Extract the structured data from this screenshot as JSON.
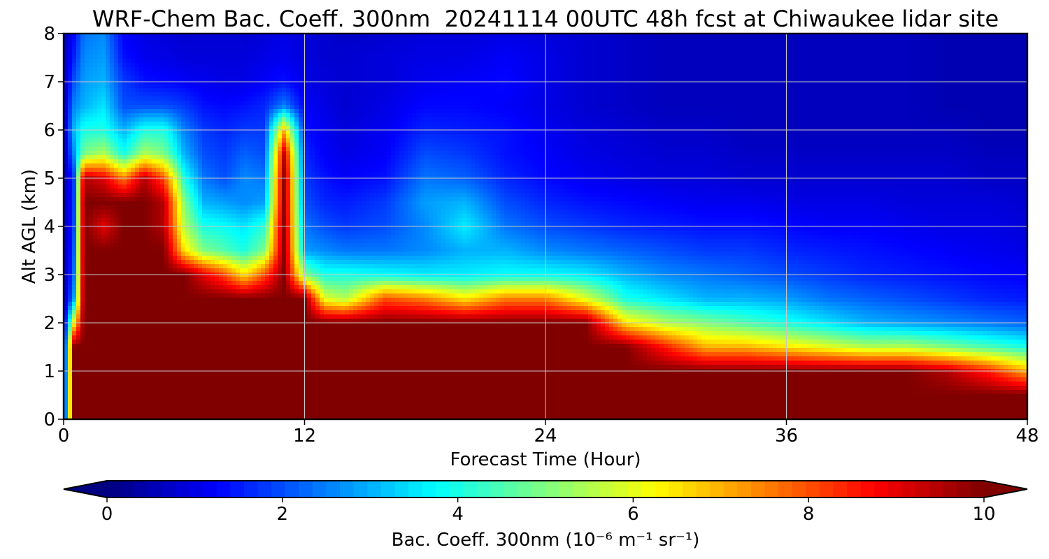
{
  "chart_data": {
    "type": "heatmap",
    "title": "WRF-Chem Bac. Coeff. 300nm  20241114 00UTC 48h fcst at Chiwaukee lidar site",
    "xlabel": "Forecast Time (Hour)",
    "ylabel": "Alt AGL (km)",
    "xlim": [
      0,
      48
    ],
    "ylim": [
      0,
      8
    ],
    "xticks": [
      0,
      12,
      24,
      36,
      48
    ],
    "yticks": [
      0,
      1,
      2,
      3,
      4,
      5,
      6,
      7,
      8
    ],
    "grid": true,
    "colorbar": {
      "label": "Bac. Coeff. 300nm  (10⁻⁶ m⁻¹ sr⁻¹)",
      "range": [
        0,
        10
      ],
      "ticks": [
        0,
        2,
        4,
        6,
        8,
        10
      ],
      "extend": "both",
      "colormap": "jet"
    },
    "x": [
      0,
      0.5,
      1,
      2,
      3,
      4,
      5,
      6,
      7,
      8,
      9,
      10,
      11,
      12,
      13,
      14,
      16,
      18,
      20,
      22,
      24,
      26,
      28,
      30,
      32,
      34,
      36,
      38,
      40,
      42,
      44,
      46,
      48
    ],
    "y": [
      0,
      0.5,
      1,
      1.5,
      2,
      2.5,
      3,
      3.5,
      4,
      4.5,
      5,
      5.5,
      6,
      6.5,
      7,
      7.5,
      8
    ],
    "z": [
      [
        0.6,
        10,
        10,
        10,
        10,
        10,
        10,
        10,
        10,
        10,
        10,
        10,
        10,
        10,
        10,
        10,
        10,
        10,
        10,
        10,
        10,
        10,
        10,
        10,
        10,
        10,
        10,
        10,
        10,
        10,
        10,
        10,
        10
      ],
      [
        0.6,
        10,
        10,
        10,
        10,
        10,
        10,
        10,
        10,
        10,
        10,
        10,
        10,
        10,
        10,
        10,
        10,
        10,
        10,
        10,
        10,
        10,
        10,
        10,
        10,
        10,
        10,
        10,
        10,
        10,
        10,
        10,
        10
      ],
      [
        0.6,
        10,
        10,
        10,
        10,
        10,
        10,
        10,
        10,
        10,
        10,
        10,
        10,
        10,
        10,
        10,
        10,
        10,
        10,
        10,
        10,
        10,
        10,
        10,
        10,
        10,
        10,
        10,
        10,
        10,
        9.5,
        8.5,
        7.0
      ],
      [
        0.6,
        10,
        10,
        10,
        10,
        10,
        10,
        10,
        10,
        10,
        10,
        10,
        10,
        10,
        10,
        10,
        10,
        10,
        10,
        10,
        10,
        10,
        10,
        8.5,
        7.0,
        7.0,
        6.5,
        6.0,
        5.5,
        5.5,
        5.0,
        4.5,
        4.0
      ],
      [
        0.6,
        6.0,
        10,
        10,
        10,
        10,
        10,
        10,
        10,
        10,
        10,
        10,
        10,
        10,
        10,
        10,
        10,
        10,
        10,
        10,
        10,
        10,
        6.5,
        5.5,
        5.0,
        4.5,
        4.0,
        3.5,
        3.0,
        2.8,
        2.6,
        2.4,
        2.2
      ],
      [
        0.5,
        2.5,
        10,
        10,
        10,
        10,
        10,
        10,
        10,
        10,
        10,
        10,
        10,
        10,
        6.0,
        5.5,
        8.0,
        7.5,
        6.5,
        7.5,
        7.5,
        6.0,
        4.0,
        3.5,
        3.0,
        3.0,
        2.8,
        2.4,
        2.2,
        2.0,
        1.8,
        1.6,
        1.5
      ],
      [
        0.5,
        2.0,
        10,
        10,
        10,
        10,
        10,
        10,
        9.0,
        8.0,
        6.5,
        8.0,
        10,
        5.0,
        4.0,
        4.0,
        3.8,
        3.6,
        3.6,
        3.8,
        3.8,
        3.6,
        3.0,
        2.6,
        2.4,
        2.2,
        2.0,
        1.8,
        1.6,
        1.5,
        1.4,
        1.3,
        1.2
      ],
      [
        0.5,
        1.8,
        10,
        10,
        10,
        10,
        10,
        6.5,
        5.0,
        4.5,
        4.0,
        5.0,
        10,
        2.8,
        2.6,
        2.4,
        2.4,
        2.6,
        3.0,
        3.0,
        2.6,
        2.4,
        2.2,
        2.0,
        1.8,
        1.8,
        1.6,
        1.5,
        1.4,
        1.3,
        1.2,
        1.1,
        1.0
      ],
      [
        0.5,
        1.6,
        10,
        9.0,
        10,
        10,
        9.5,
        5.5,
        4.0,
        3.8,
        3.5,
        4.2,
        10,
        2.4,
        2.0,
        1.8,
        2.0,
        2.6,
        3.6,
        2.4,
        2.0,
        1.8,
        1.6,
        1.5,
        1.4,
        1.4,
        1.3,
        1.2,
        1.2,
        1.1,
        1.0,
        1.0,
        0.9
      ],
      [
        0.5,
        1.5,
        10,
        10,
        10,
        10,
        9.5,
        5.0,
        3.0,
        2.8,
        2.6,
        2.8,
        10,
        2.0,
        1.6,
        1.5,
        1.8,
        2.8,
        3.0,
        2.0,
        1.6,
        1.4,
        1.3,
        1.2,
        1.1,
        1.1,
        1.0,
        1.0,
        1.0,
        0.9,
        0.9,
        0.9,
        0.8
      ],
      [
        0.5,
        1.5,
        9.5,
        9.0,
        7.5,
        9.5,
        8.0,
        4.0,
        2.4,
        2.0,
        2.6,
        2.4,
        10,
        1.8,
        1.4,
        1.2,
        1.4,
        2.4,
        2.2,
        1.6,
        1.3,
        1.1,
        1.0,
        0.9,
        0.9,
        0.8,
        0.8,
        0.8,
        0.8,
        0.8,
        0.8,
        0.7,
        0.7
      ],
      [
        0.5,
        2.5,
        5.0,
        5.5,
        4.0,
        5.5,
        5.0,
        3.0,
        2.0,
        1.8,
        2.2,
        2.0,
        9.5,
        1.6,
        1.2,
        1.0,
        1.2,
        2.0,
        1.8,
        1.4,
        1.2,
        1.0,
        0.9,
        0.8,
        0.8,
        0.7,
        0.7,
        0.7,
        0.7,
        0.7,
        0.7,
        0.6,
        0.6
      ],
      [
        0.5,
        3.0,
        4.0,
        4.0,
        3.0,
        4.0,
        4.0,
        2.5,
        1.8,
        1.6,
        1.8,
        1.8,
        7.0,
        1.4,
        1.1,
        0.9,
        1.1,
        1.6,
        1.5,
        1.4,
        1.1,
        0.9,
        0.8,
        0.7,
        0.7,
        0.6,
        0.6,
        0.6,
        0.6,
        0.6,
        0.6,
        0.5,
        0.5
      ],
      [
        0.5,
        2.5,
        3.0,
        3.5,
        2.0,
        2.0,
        2.0,
        1.8,
        1.4,
        1.3,
        1.4,
        1.6,
        2.5,
        1.2,
        1.0,
        0.8,
        1.0,
        1.3,
        1.3,
        1.2,
        1.0,
        0.8,
        0.7,
        0.6,
        0.6,
        0.6,
        0.6,
        0.6,
        0.6,
        0.6,
        0.5,
        0.5,
        0.5
      ],
      [
        0.5,
        2.0,
        2.8,
        3.0,
        1.8,
        1.4,
        1.3,
        1.2,
        1.1,
        1.0,
        1.0,
        1.2,
        1.4,
        1.0,
        0.9,
        0.8,
        0.9,
        1.1,
        1.2,
        1.3,
        1.0,
        0.8,
        0.7,
        0.6,
        0.6,
        0.6,
        0.6,
        0.6,
        0.6,
        0.6,
        0.5,
        0.5,
        0.5
      ],
      [
        0.5,
        1.5,
        2.6,
        2.8,
        1.4,
        1.1,
        1.0,
        0.9,
        0.9,
        0.9,
        0.9,
        1.0,
        1.1,
        0.9,
        0.8,
        0.8,
        0.9,
        1.0,
        1.0,
        1.2,
        1.0,
        0.8,
        0.7,
        0.6,
        0.6,
        0.6,
        0.6,
        0.6,
        0.6,
        0.6,
        0.5,
        0.5,
        0.5
      ],
      [
        0.5,
        1.2,
        2.4,
        2.6,
        1.2,
        1.0,
        0.9,
        0.8,
        0.8,
        0.8,
        0.8,
        0.9,
        1.0,
        0.9,
        0.8,
        0.7,
        0.8,
        0.9,
        0.9,
        1.0,
        0.9,
        0.8,
        0.7,
        0.6,
        0.6,
        0.6,
        0.6,
        0.6,
        0.6,
        0.6,
        0.5,
        0.5,
        0.5
      ]
    ]
  }
}
